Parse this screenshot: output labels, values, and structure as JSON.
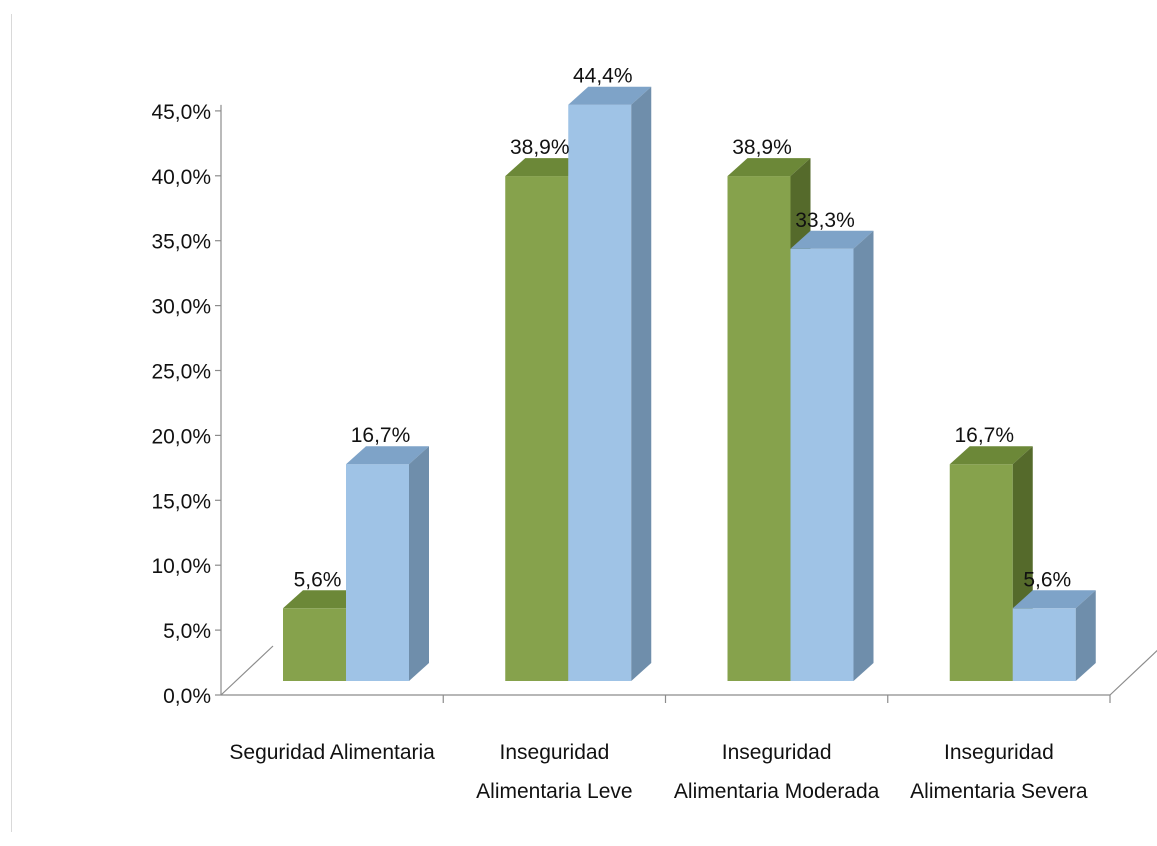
{
  "chart_data": {
    "type": "bar",
    "style": "3d-clustered-column",
    "categories": [
      [
        "Seguridad Alimentaria"
      ],
      [
        "Inseguridad",
        "Alimentaria Leve"
      ],
      [
        "Inseguridad",
        "Alimentaria Moderada"
      ],
      [
        "Inseguridad",
        "Alimentaria Severa"
      ]
    ],
    "series": [
      {
        "values": [
          5.6,
          38.9,
          38.9,
          16.7
        ],
        "labels": [
          "5,6%",
          "38,9%",
          "38,9%",
          "16,7%"
        ],
        "color": "#86a24c",
        "top_color": "#6c8838",
        "side_color": "#556a2b"
      },
      {
        "values": [
          16.7,
          44.4,
          33.3,
          5.6
        ],
        "labels": [
          "16,7%",
          "44,4%",
          "33,3%",
          "5,6%"
        ],
        "color": "#9fc3e6",
        "top_color": "#7ea3c8",
        "side_color": "#6f8eab"
      }
    ],
    "y_ticks": [
      "0,0%",
      "5,0%",
      "10,0%",
      "15,0%",
      "20,0%",
      "25,0%",
      "30,0%",
      "35,0%",
      "40,0%",
      "45,0%"
    ],
    "ylim": [
      0,
      45
    ],
    "grid": false,
    "legend": "none"
  }
}
